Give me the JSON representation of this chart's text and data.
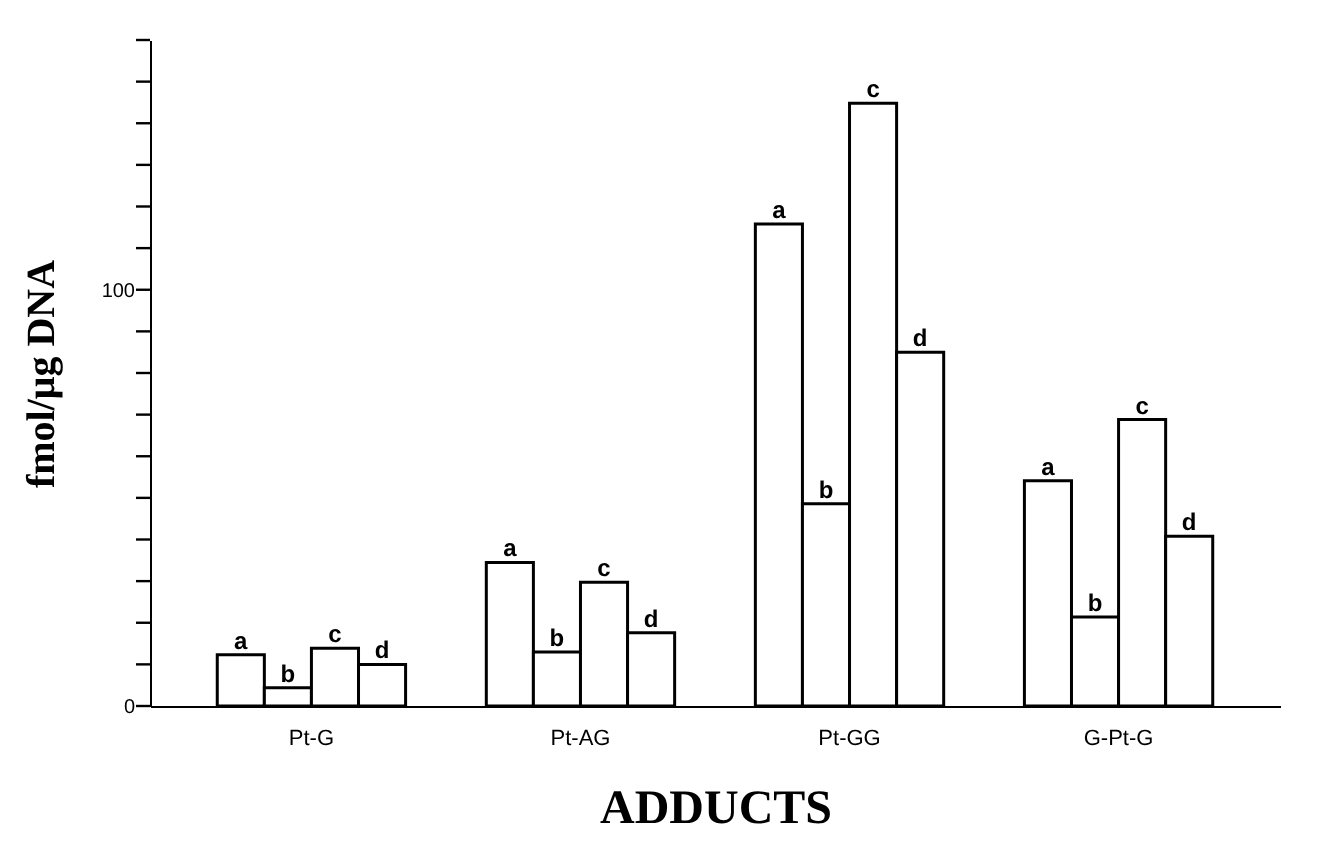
{
  "chart_data": {
    "type": "bar",
    "xlabel": "ADDUCTS",
    "ylabel": "fmol/μg DNA",
    "categories": [
      "Pt-G",
      "Pt-AG",
      "Pt-GG",
      "G-Pt-G"
    ],
    "series": [
      {
        "name": "a",
        "color": "#ffffff",
        "values": [
          12.3,
          34.5,
          115.8,
          54.1
        ]
      },
      {
        "name": "b",
        "color": "#ffffff",
        "values": [
          4.4,
          13.0,
          48.6,
          21.4
        ]
      },
      {
        "name": "c",
        "color": "#ffffff",
        "values": [
          13.9,
          29.7,
          144.8,
          68.8
        ]
      },
      {
        "name": "d",
        "color": "#ffffff",
        "values": [
          10.0,
          17.6,
          85.0,
          40.8
        ]
      }
    ],
    "ylim": [
      0,
      160
    ],
    "yticks": [
      0,
      {
        "value": 10,
        "label": null
      },
      {
        "value": 20,
        "label": null
      },
      {
        "value": 30,
        "label": null
      },
      {
        "value": 40,
        "label": null
      },
      {
        "value": 50,
        "label": null
      },
      {
        "value": 60,
        "label": null
      },
      {
        "value": 70,
        "label": null
      },
      {
        "value": 80,
        "label": null
      },
      {
        "value": 90,
        "label": null
      },
      100,
      {
        "value": 110,
        "label": null
      },
      {
        "value": 120,
        "label": null
      },
      {
        "value": 130,
        "label": null
      },
      {
        "value": 140,
        "label": null
      },
      {
        "value": 150,
        "label": null
      },
      {
        "value": 160,
        "label": null
      }
    ],
    "grid": false
  }
}
